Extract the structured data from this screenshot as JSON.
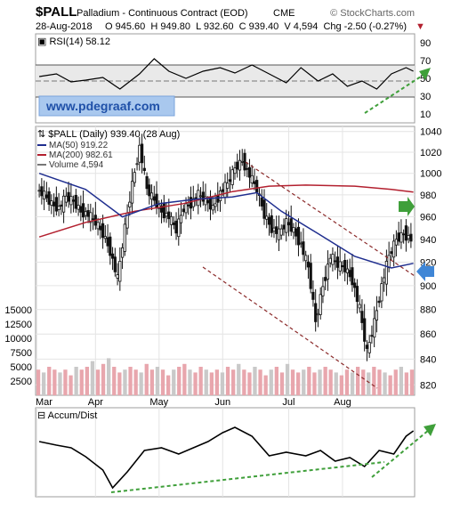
{
  "header": {
    "symbol": "$PALL",
    "name": "Palladium - Continuous Contract (EOD)",
    "exchange": "CME",
    "watermark": "© StockCharts.com",
    "date": "28-Aug-2018",
    "ohlc_line": "O 945.60  H 949.80  L 932.60  C 939.40  V 4,594  Chg -2.50 (-0.27%)"
  },
  "rsi": {
    "label": "RSI(14) 58.12",
    "ticks": [
      "90",
      "70",
      "50",
      "30",
      "10"
    ],
    "banner": "www.pdegraaf.com"
  },
  "price": {
    "title": "$PALL (Daily) 939.40 (28 Aug)",
    "legend": [
      "MA(50) 919.22",
      "MA(200) 982.61",
      "Volume 4,594"
    ],
    "ticks": [
      "1040",
      "1020",
      "1000",
      "980",
      "960",
      "940",
      "920",
      "900",
      "880",
      "860",
      "840",
      "820"
    ],
    "volume_ticks": [
      "15000",
      "12500",
      "10000",
      "7500",
      "5000",
      "2500"
    ]
  },
  "months": [
    "Mar",
    "Apr",
    "May",
    "Jun",
    "Jul",
    "Aug"
  ],
  "accum": {
    "label": "Accum/Dist"
  },
  "colors": {
    "ma50": "#1f2e8f",
    "ma200": "#b3202f",
    "trendline": "#8b2a2a",
    "annotation_green": "#3f9f3a",
    "annotation_blue": "#3f86d6",
    "volume_up": "#c9c9c9",
    "volume_down": "#e8a6ad",
    "rsi_band": "#e9e9e9"
  },
  "chart_data": {
    "type": "candlestick",
    "title": "$PALL (Daily) 939.40 (28 Aug)",
    "date_range": [
      "2018-02-28",
      "2018-08-28"
    ],
    "y_range": [
      812,
      1045
    ],
    "scale": "log",
    "grid": true,
    "legend_position": "top-left",
    "last_bar": {
      "date": "2018-08-28",
      "open": 945.6,
      "high": 949.8,
      "low": 932.6,
      "close": 939.4,
      "volume": 4594,
      "change": -2.5,
      "change_pct": -0.27
    },
    "price_closes": [
      [
        1,
        985
      ],
      [
        4,
        980
      ],
      [
        7,
        972
      ],
      [
        10,
        968
      ],
      [
        13,
        978
      ],
      [
        16,
        974
      ],
      [
        19,
        965
      ],
      [
        22,
        962
      ],
      [
        25,
        955
      ],
      [
        28,
        945
      ],
      [
        31,
        930
      ],
      [
        34,
        905
      ],
      [
        37,
        950
      ],
      [
        40,
        990
      ],
      [
        43,
        1025
      ],
      [
        46,
        985
      ],
      [
        49,
        975
      ],
      [
        52,
        965
      ],
      [
        55,
        960
      ],
      [
        58,
        948
      ],
      [
        61,
        968
      ],
      [
        64,
        972
      ],
      [
        67,
        980
      ],
      [
        70,
        975
      ],
      [
        73,
        968
      ],
      [
        76,
        982
      ],
      [
        79,
        990
      ],
      [
        82,
        1005
      ],
      [
        85,
        1012
      ],
      [
        88,
        998
      ],
      [
        91,
        985
      ],
      [
        94,
        962
      ],
      [
        97,
        950
      ],
      [
        100,
        945
      ],
      [
        103,
        955
      ],
      [
        106,
        948
      ],
      [
        109,
        935
      ],
      [
        112,
        915
      ],
      [
        115,
        870
      ],
      [
        118,
        900
      ],
      [
        121,
        925
      ],
      [
        124,
        918
      ],
      [
        127,
        915
      ],
      [
        130,
        905
      ],
      [
        133,
        880
      ],
      [
        136,
        845
      ],
      [
        139,
        870
      ],
      [
        142,
        900
      ],
      [
        145,
        925
      ],
      [
        148,
        940
      ],
      [
        151,
        945
      ],
      [
        154,
        940
      ]
    ],
    "volume_bars": [
      4500,
      4000,
      5000,
      4500,
      4000,
      4500,
      3500,
      5000,
      4500,
      5000,
      6000,
      4500,
      5500,
      6500,
      5000,
      4000,
      4500,
      5000,
      4500,
      4000,
      5500,
      4500,
      5000,
      4500,
      3500,
      4500,
      5000,
      5500,
      4500,
      4000,
      5000,
      4500,
      4000,
      4500,
      4000,
      5000,
      4500,
      5500,
      4500,
      4000,
      5000,
      4500,
      3500,
      4500,
      5000,
      4000,
      5500,
      4500,
      4000,
      4500,
      5000,
      4000,
      4500,
      5000,
      4500,
      4000,
      3500,
      4500,
      4000,
      5000,
      4500,
      4000,
      5000,
      4500,
      4000,
      3500,
      4500,
      5000,
      4000,
      4500
    ],
    "ma50": [
      [
        1,
        1000
      ],
      [
        20,
        985
      ],
      [
        35,
        960
      ],
      [
        50,
        972
      ],
      [
        65,
        976
      ],
      [
        80,
        978
      ],
      [
        90,
        982
      ],
      [
        100,
        965
      ],
      [
        115,
        945
      ],
      [
        130,
        925
      ],
      [
        145,
        915
      ],
      [
        154,
        919
      ]
    ],
    "ma200": [
      [
        1,
        942
      ],
      [
        20,
        955
      ],
      [
        40,
        965
      ],
      [
        60,
        972
      ],
      [
        80,
        983
      ],
      [
        95,
        988
      ],
      [
        110,
        989
      ],
      [
        130,
        988
      ],
      [
        145,
        985
      ],
      [
        154,
        982.61
      ]
    ],
    "rsi_values": [
      [
        1,
        52
      ],
      [
        8,
        55
      ],
      [
        14,
        46
      ],
      [
        20,
        48
      ],
      [
        27,
        51
      ],
      [
        34,
        38
      ],
      [
        42,
        55
      ],
      [
        48,
        72
      ],
      [
        54,
        58
      ],
      [
        61,
        50
      ],
      [
        68,
        58
      ],
      [
        75,
        62
      ],
      [
        81,
        56
      ],
      [
        88,
        65
      ],
      [
        95,
        55
      ],
      [
        102,
        45
      ],
      [
        108,
        62
      ],
      [
        115,
        47
      ],
      [
        121,
        55
      ],
      [
        127,
        41
      ],
      [
        133,
        47
      ],
      [
        139,
        38
      ],
      [
        145,
        55
      ],
      [
        151,
        62
      ],
      [
        154,
        58
      ]
    ],
    "accum_dist": [
      [
        1,
        62
      ],
      [
        8,
        58
      ],
      [
        14,
        55
      ],
      [
        20,
        45
      ],
      [
        27,
        30
      ],
      [
        31,
        10
      ],
      [
        37,
        28
      ],
      [
        44,
        52
      ],
      [
        51,
        55
      ],
      [
        58,
        48
      ],
      [
        64,
        55
      ],
      [
        70,
        62
      ],
      [
        76,
        72
      ],
      [
        81,
        78
      ],
      [
        88,
        68
      ],
      [
        95,
        46
      ],
      [
        102,
        50
      ],
      [
        110,
        46
      ],
      [
        116,
        52
      ],
      [
        122,
        40
      ],
      [
        128,
        44
      ],
      [
        134,
        34
      ],
      [
        140,
        52
      ],
      [
        146,
        48
      ],
      [
        151,
        68
      ],
      [
        154,
        74
      ]
    ]
  }
}
